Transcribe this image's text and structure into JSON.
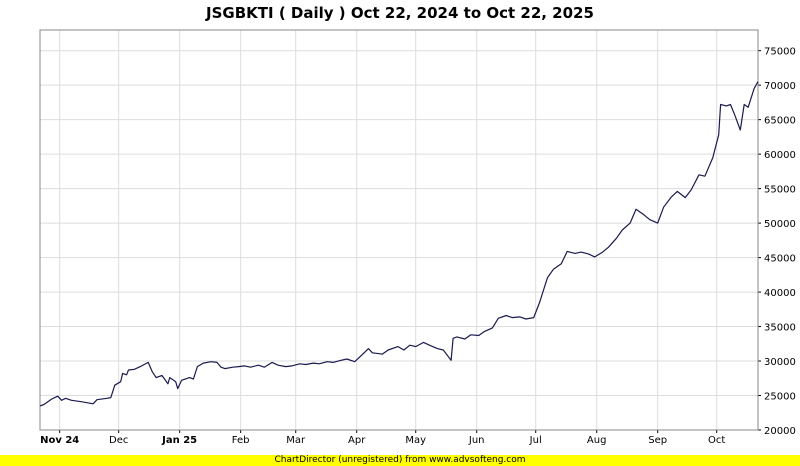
{
  "chart_data": {
    "type": "line",
    "title": "JSGBKTI ( Daily ) Oct 22, 2024 to Oct 22, 2025",
    "xlabel": "",
    "ylabel": "",
    "ylim": [
      20000,
      78000
    ],
    "y_ticks": [
      20000,
      25000,
      30000,
      35000,
      40000,
      45000,
      50000,
      55000,
      60000,
      65000,
      70000,
      75000
    ],
    "x_range": [
      "2024-10-22",
      "2025-10-22"
    ],
    "x_ticks": [
      {
        "label": "Nov 24",
        "date": "2024-11-01",
        "bold": true
      },
      {
        "label": "Dec",
        "date": "2024-12-01",
        "bold": false
      },
      {
        "label": "Jan 25",
        "date": "2025-01-01",
        "bold": true
      },
      {
        "label": "Feb",
        "date": "2025-02-01",
        "bold": false
      },
      {
        "label": "Mar",
        "date": "2025-03-01",
        "bold": false
      },
      {
        "label": "Apr",
        "date": "2025-04-01",
        "bold": false
      },
      {
        "label": "May",
        "date": "2025-05-01",
        "bold": false
      },
      {
        "label": "Jun",
        "date": "2025-06-01",
        "bold": false
      },
      {
        "label": "Jul",
        "date": "2025-07-01",
        "bold": false
      },
      {
        "label": "Aug",
        "date": "2025-08-01",
        "bold": false
      },
      {
        "label": "Sep",
        "date": "2025-09-01",
        "bold": false
      },
      {
        "label": "Oct",
        "date": "2025-10-01",
        "bold": false
      }
    ],
    "grid": true,
    "line_color": "#1a1a4e",
    "series": [
      {
        "points": [
          [
            "2024-10-22",
            23500
          ],
          [
            "2024-10-24",
            23700
          ],
          [
            "2024-10-28",
            24500
          ],
          [
            "2024-10-31",
            24900
          ],
          [
            "2024-11-02",
            24300
          ],
          [
            "2024-11-04",
            24600
          ],
          [
            "2024-11-07",
            24300
          ],
          [
            "2024-11-12",
            24100
          ],
          [
            "2024-11-18",
            23800
          ],
          [
            "2024-11-20",
            24400
          ],
          [
            "2024-11-25",
            24600
          ],
          [
            "2024-11-27",
            24700
          ],
          [
            "2024-11-29",
            26500
          ],
          [
            "2024-12-02",
            27000
          ],
          [
            "2024-12-03",
            28200
          ],
          [
            "2024-12-05",
            28000
          ],
          [
            "2024-12-06",
            28700
          ],
          [
            "2024-12-09",
            28800
          ],
          [
            "2024-12-12",
            29200
          ],
          [
            "2024-12-16",
            29800
          ],
          [
            "2024-12-18",
            28500
          ],
          [
            "2024-12-20",
            27600
          ],
          [
            "2024-12-23",
            27900
          ],
          [
            "2024-12-26",
            26700
          ],
          [
            "2024-12-27",
            27600
          ],
          [
            "2024-12-30",
            27000
          ],
          [
            "2024-12-31",
            26000
          ],
          [
            "2025-01-02",
            27200
          ],
          [
            "2025-01-06",
            27600
          ],
          [
            "2025-01-08",
            27400
          ],
          [
            "2025-01-10",
            29200
          ],
          [
            "2025-01-13",
            29700
          ],
          [
            "2025-01-17",
            29900
          ],
          [
            "2025-01-20",
            29800
          ],
          [
            "2025-01-22",
            29100
          ],
          [
            "2025-01-24",
            28900
          ],
          [
            "2025-01-28",
            29100
          ],
          [
            "2025-01-31",
            29200
          ],
          [
            "2025-02-03",
            29300
          ],
          [
            "2025-02-06",
            29100
          ],
          [
            "2025-02-10",
            29400
          ],
          [
            "2025-02-13",
            29100
          ],
          [
            "2025-02-17",
            29800
          ],
          [
            "2025-02-20",
            29400
          ],
          [
            "2025-02-24",
            29200
          ],
          [
            "2025-02-27",
            29300
          ],
          [
            "2025-03-03",
            29600
          ],
          [
            "2025-03-06",
            29500
          ],
          [
            "2025-03-10",
            29700
          ],
          [
            "2025-03-13",
            29600
          ],
          [
            "2025-03-17",
            29900
          ],
          [
            "2025-03-20",
            29800
          ],
          [
            "2025-03-24",
            30100
          ],
          [
            "2025-03-27",
            30300
          ],
          [
            "2025-03-31",
            29900
          ],
          [
            "2025-04-03",
            30700
          ],
          [
            "2025-04-07",
            31800
          ],
          [
            "2025-04-09",
            31200
          ],
          [
            "2025-04-14",
            31000
          ],
          [
            "2025-04-17",
            31600
          ],
          [
            "2025-04-22",
            32100
          ],
          [
            "2025-04-25",
            31600
          ],
          [
            "2025-04-28",
            32300
          ],
          [
            "2025-05-01",
            32100
          ],
          [
            "2025-05-05",
            32700
          ],
          [
            "2025-05-08",
            32300
          ],
          [
            "2025-05-12",
            31800
          ],
          [
            "2025-05-15",
            31600
          ],
          [
            "2025-05-19",
            30100
          ],
          [
            "2025-05-20",
            33300
          ],
          [
            "2025-05-22",
            33500
          ],
          [
            "2025-05-26",
            33200
          ],
          [
            "2025-05-29",
            33800
          ],
          [
            "2025-06-02",
            33700
          ],
          [
            "2025-06-05",
            34300
          ],
          [
            "2025-06-09",
            34800
          ],
          [
            "2025-06-12",
            36200
          ],
          [
            "2025-06-16",
            36600
          ],
          [
            "2025-06-19",
            36300
          ],
          [
            "2025-06-23",
            36400
          ],
          [
            "2025-06-26",
            36100
          ],
          [
            "2025-06-30",
            36300
          ],
          [
            "2025-07-03",
            38500
          ],
          [
            "2025-07-07",
            42100
          ],
          [
            "2025-07-10",
            43300
          ],
          [
            "2025-07-14",
            44100
          ],
          [
            "2025-07-17",
            45900
          ],
          [
            "2025-07-21",
            45600
          ],
          [
            "2025-07-24",
            45800
          ],
          [
            "2025-07-28",
            45500
          ],
          [
            "2025-07-31",
            45100
          ],
          [
            "2025-08-04",
            45800
          ],
          [
            "2025-08-07",
            46500
          ],
          [
            "2025-08-11",
            47800
          ],
          [
            "2025-08-14",
            49000
          ],
          [
            "2025-08-18",
            50000
          ],
          [
            "2025-08-21",
            52000
          ],
          [
            "2025-08-25",
            51200
          ],
          [
            "2025-08-28",
            50500
          ],
          [
            "2025-09-01",
            50000
          ],
          [
            "2025-09-04",
            52300
          ],
          [
            "2025-09-08",
            53800
          ],
          [
            "2025-09-11",
            54600
          ],
          [
            "2025-09-15",
            53700
          ],
          [
            "2025-09-18",
            54800
          ],
          [
            "2025-09-22",
            57000
          ],
          [
            "2025-09-25",
            56800
          ],
          [
            "2025-09-29",
            59500
          ],
          [
            "2025-10-02",
            62800
          ],
          [
            "2025-10-03",
            67200
          ],
          [
            "2025-10-06",
            67000
          ],
          [
            "2025-10-08",
            67200
          ],
          [
            "2025-10-10",
            65800
          ],
          [
            "2025-10-13",
            63500
          ],
          [
            "2025-10-15",
            67200
          ],
          [
            "2025-10-17",
            66800
          ],
          [
            "2025-10-20",
            69500
          ],
          [
            "2025-10-22",
            70500
          ]
        ]
      }
    ]
  },
  "footer": {
    "text": "ChartDirector (unregistered) from www.advsofteng.com"
  }
}
